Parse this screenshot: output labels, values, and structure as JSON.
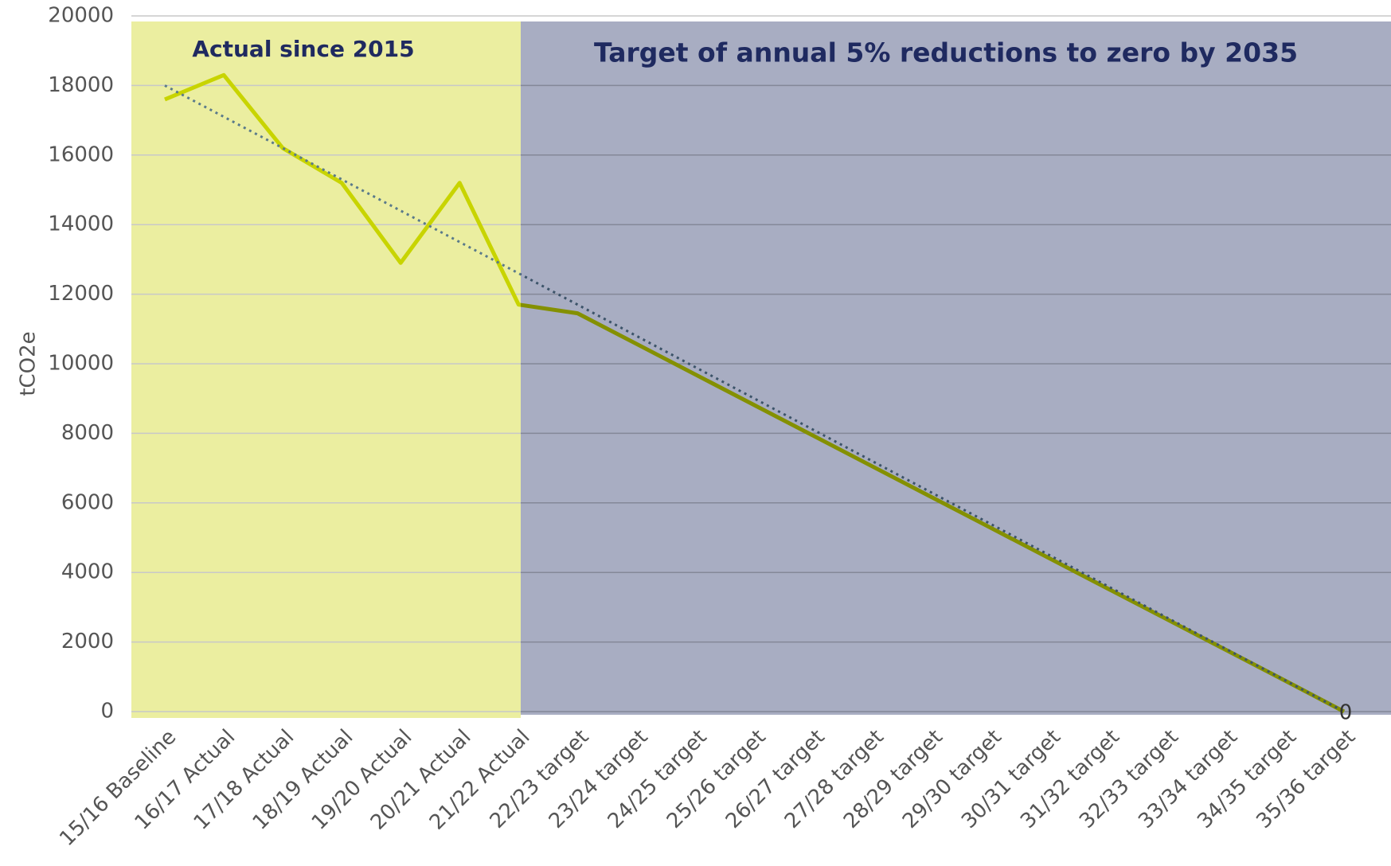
{
  "chart_data": {
    "type": "line",
    "y_label": "tCO2e",
    "annotations": [
      "Actual since 2015",
      "Target of annual 5% reductions to zero by 2035"
    ],
    "categories": [
      "15/16 Baseline",
      "16/17 Actual",
      "17/18 Actual",
      "18/19 Actual",
      "19/20 Actual",
      "20/21 Actual",
      "21/22 Actual",
      "22/23 target",
      "23/24 target",
      "24/25 target",
      "25/26 target",
      "26/27 target",
      "27/28 target",
      "28/29 target",
      "29/30 target",
      "30/31 target",
      "31/32 target",
      "32/33 target",
      "33/34 target",
      "34/35 target",
      "35/36 target"
    ],
    "series": [
      {
        "color": "#c8d400",
        "values": [
          17600,
          18300,
          16200,
          15200,
          12900,
          15200,
          11700,
          11450,
          10570,
          9690,
          8810,
          7930,
          7050,
          6170,
          5290,
          4410,
          3530,
          2650,
          1770,
          890,
          0
        ]
      }
    ],
    "trend": {
      "color": "#5a7a8a",
      "values": [
        18000,
        0
      ]
    },
    "data_label": "chart_data.series.0.values.20",
    "regions": [
      {
        "color": "#ebeea0"
      },
      {
        "color": "#a8adc2"
      }
    ],
    "ylim": [
      0,
      20000
    ],
    "yticks": [
      0,
      2000,
      4000,
      6000,
      8000,
      10000,
      12000,
      14000,
      16000,
      18000,
      20000
    ],
    "grid": true
  }
}
